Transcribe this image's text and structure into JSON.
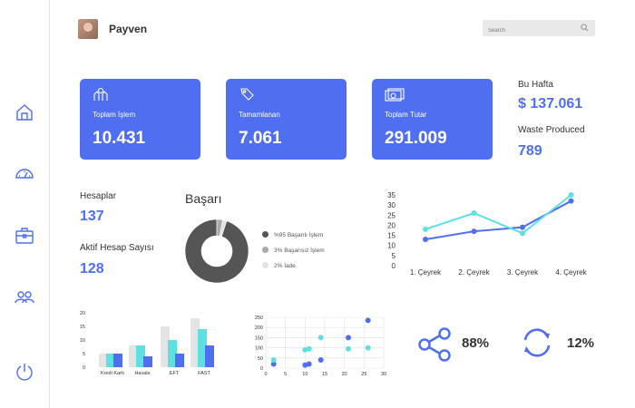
{
  "header": {
    "brand": "Payven",
    "search_placeholder": "Search"
  },
  "sidebar": {
    "items": [
      {
        "icon": "home-icon"
      },
      {
        "icon": "speedometer-icon"
      },
      {
        "icon": "briefcase-icon"
      },
      {
        "icon": "users-icon"
      },
      {
        "icon": "power-icon"
      }
    ]
  },
  "cards": [
    {
      "label": "Toplam İşlem",
      "value": "10.431",
      "icon": "hands-icon"
    },
    {
      "label": "Tamamlanan",
      "value": "7.061",
      "icon": "tag-icon"
    },
    {
      "label": "Toplam Tutar",
      "value": "291.009",
      "icon": "cash-icon"
    }
  ],
  "week": {
    "label": "Bu Hafta",
    "value": "$ 137.061",
    "waste_label": "Waste Produced",
    "waste_value": "789"
  },
  "stats": {
    "accounts_label": "Hesaplar",
    "accounts_value": "137",
    "active_label": "Aktif Hesap Sayısı",
    "active_value": "128"
  },
  "colors": {
    "accent": "#4f6ff0",
    "cyan": "#5fe0e0",
    "gray": "#e4e4e4",
    "dark": "#555555"
  },
  "chart_data": [
    {
      "type": "pie",
      "title": "Başarı",
      "labels": [
        "%95 Başarılı İşlem",
        "3% Başarısız İşlem",
        "2% İade"
      ],
      "values": [
        95,
        3,
        2
      ],
      "colors": [
        "#555555",
        "#aaaaaa",
        "#e3e3e3"
      ]
    },
    {
      "type": "line",
      "categories": [
        "1. Çeyrek",
        "2. Çeyrek",
        "3. Çeyrek",
        "4. Çeyrek"
      ],
      "yticks": [
        0,
        5,
        10,
        15,
        20,
        25,
        30,
        35
      ],
      "ylim": [
        0,
        35
      ],
      "series": [
        {
          "values": [
            13,
            17,
            19,
            32
          ],
          "color": "#4f6ff0"
        },
        {
          "values": [
            18,
            26,
            16,
            35
          ],
          "color": "#5fe0e0"
        }
      ]
    },
    {
      "type": "bar",
      "categories": [
        "Kredi Kartı",
        "Havale",
        "EFT",
        "FAST"
      ],
      "yticks": [
        0,
        5,
        10,
        15,
        20
      ],
      "ylim": [
        0,
        20
      ],
      "series": [
        {
          "values": [
            5,
            8,
            15,
            18
          ],
          "color": "#e4e4e4"
        },
        {
          "values": [
            5,
            8,
            10,
            14
          ],
          "color": "#5fe0e0"
        },
        {
          "values": [
            5,
            4,
            5,
            8
          ],
          "color": "#4f6ff0"
        }
      ]
    },
    {
      "type": "scatter",
      "xlim": [
        0,
        30
      ],
      "ylim": [
        0,
        250
      ],
      "xticks": [
        0,
        5,
        10,
        15,
        20,
        25,
        30
      ],
      "yticks": [
        0,
        50,
        100,
        150,
        200,
        250
      ],
      "grid": true,
      "series": [
        {
          "points": [
            [
              2,
              20
            ],
            [
              10,
              15
            ],
            [
              11,
              20
            ],
            [
              14,
              40
            ],
            [
              21,
              150
            ],
            [
              26,
              235
            ]
          ],
          "color": "#4f6ff0"
        },
        {
          "points": [
            [
              2,
              40
            ],
            [
              10,
              90
            ],
            [
              11,
              95
            ],
            [
              14,
              150
            ],
            [
              21,
              95
            ],
            [
              26,
              100
            ]
          ],
          "color": "#5fe0e0"
        }
      ]
    }
  ],
  "kpis": [
    {
      "icon": "share-icon",
      "value": "88%"
    },
    {
      "icon": "refresh-icon",
      "value": "12%"
    }
  ]
}
